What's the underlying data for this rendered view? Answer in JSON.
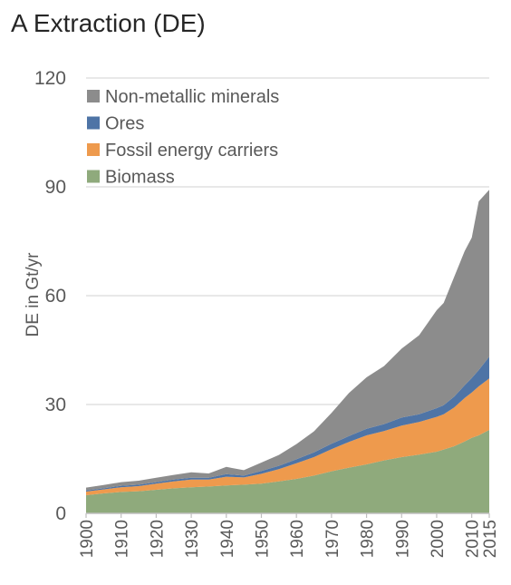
{
  "chart_data": {
    "type": "area",
    "stacked": true,
    "title": "A Extraction (DE)",
    "ylabel": "DE in Gt/yr",
    "xlabel": "",
    "xlim": [
      1900,
      2015
    ],
    "ylim": [
      0,
      120
    ],
    "y_ticks": [
      0,
      30,
      60,
      90,
      120
    ],
    "x_ticks": [
      1900,
      1910,
      1920,
      1930,
      1940,
      1950,
      1960,
      1970,
      1980,
      1990,
      2000,
      2010,
      2015
    ],
    "grid": "horizontal",
    "legend_position": "top-left",
    "x": [
      1900,
      1905,
      1910,
      1915,
      1920,
      1925,
      1930,
      1935,
      1940,
      1945,
      1950,
      1955,
      1960,
      1965,
      1970,
      1975,
      1980,
      1985,
      1990,
      1995,
      2000,
      2002,
      2005,
      2008,
      2010,
      2012,
      2015
    ],
    "series": [
      {
        "name": "Biomass",
        "color": "#8faa7c",
        "values": [
          5.0,
          5.5,
          5.9,
          6.1,
          6.5,
          6.9,
          7.2,
          7.4,
          7.7,
          7.9,
          8.2,
          8.8,
          9.5,
          10.4,
          11.6,
          12.6,
          13.5,
          14.6,
          15.5,
          16.2,
          17.0,
          17.6,
          18.5,
          19.8,
          20.8,
          21.5,
          23.0
        ]
      },
      {
        "name": "Fossil energy carriers",
        "color": "#ee9a4d",
        "values": [
          1.0,
          1.1,
          1.3,
          1.4,
          1.7,
          1.9,
          2.1,
          1.9,
          2.4,
          2.0,
          2.7,
          3.4,
          4.3,
          5.1,
          6.1,
          7.1,
          8.0,
          8.1,
          8.7,
          9.0,
          9.6,
          9.7,
          10.7,
          12.0,
          12.5,
          13.5,
          14.2
        ]
      },
      {
        "name": "Ores",
        "color": "#4e74a6",
        "values": [
          0.3,
          0.3,
          0.4,
          0.4,
          0.4,
          0.5,
          0.5,
          0.5,
          0.7,
          0.5,
          0.8,
          0.9,
          1.1,
          1.3,
          1.5,
          1.6,
          1.8,
          1.9,
          2.2,
          2.1,
          2.4,
          2.5,
          3.0,
          3.5,
          4.0,
          4.5,
          6.0
        ]
      },
      {
        "name": "Non-metallic minerals",
        "color": "#8c8c8c",
        "values": [
          0.8,
          0.9,
          1.0,
          1.1,
          1.2,
          1.3,
          1.5,
          1.2,
          2.0,
          1.5,
          2.3,
          3.0,
          4.2,
          5.8,
          8.5,
          11.9,
          14.2,
          16.0,
          19.0,
          21.8,
          27.0,
          28.2,
          33.0,
          37.0,
          38.7,
          46.5,
          46.0
        ]
      }
    ]
  }
}
